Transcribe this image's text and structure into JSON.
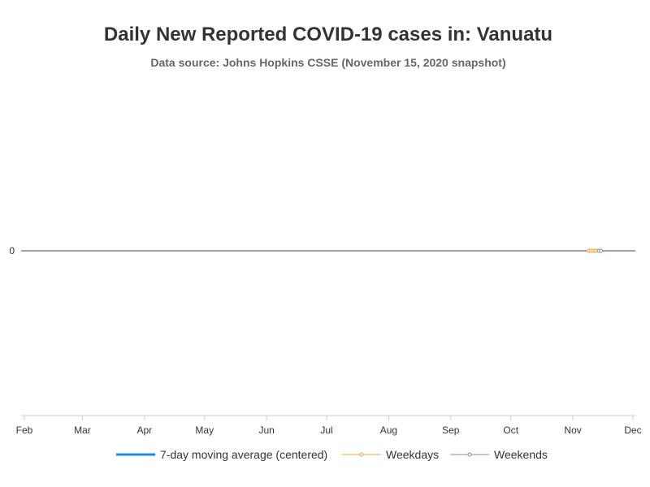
{
  "chart_data": {
    "type": "line",
    "title": "Daily New Reported COVID-19 cases in: Vanuatu",
    "subtitle": "Data source: Johns Hopkins CSSE (November 15, 2020 snapshot)",
    "xlabel": "",
    "ylabel": "",
    "x_range": [
      "2020-02-01",
      "2020-12-01"
    ],
    "x_tick_labels": [
      "Feb",
      "Mar",
      "Apr",
      "May",
      "Jun",
      "Jul",
      "Aug",
      "Sep",
      "Oct",
      "Nov",
      "Dec"
    ],
    "y_tick_labels": [
      "0"
    ],
    "grid": false,
    "legend_position": "bottom",
    "series": [
      {
        "name": "7-day moving average (centered)",
        "color": "#1e88e5",
        "x": [
          "2020-11-09",
          "2020-11-10",
          "2020-11-11",
          "2020-11-12"
        ],
        "y": [
          0,
          0,
          0,
          0
        ]
      },
      {
        "name": "Weekdays",
        "color": "#f0a830",
        "x": [
          "2020-11-09",
          "2020-11-10",
          "2020-11-11",
          "2020-11-12",
          "2020-11-13"
        ],
        "y": [
          0,
          0,
          0,
          0,
          0
        ]
      },
      {
        "name": "Weekends",
        "color": "#8c8c8c",
        "x": [
          "2020-11-14",
          "2020-11-15"
        ],
        "y": [
          0,
          0
        ]
      }
    ]
  }
}
